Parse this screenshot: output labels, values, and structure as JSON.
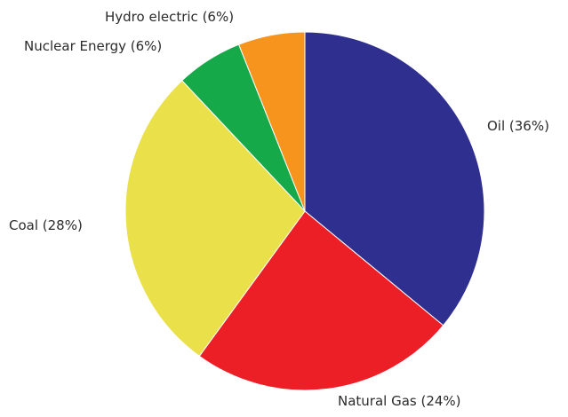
{
  "chart_data": {
    "type": "pie",
    "title": "",
    "start": "top",
    "direction": "clockwise",
    "slices": [
      {
        "label": "Oil (36%)",
        "name": "Oil",
        "value": 36,
        "color": "#2E2F8F"
      },
      {
        "label": "Natural Gas (24%)",
        "name": "Natural Gas",
        "value": 24,
        "color": "#EC1F26"
      },
      {
        "label": "Coal (28%)",
        "name": "Coal",
        "value": 28,
        "color": "#EAE14A"
      },
      {
        "label": "Nuclear Energy (6%)",
        "name": "Nuclear Energy",
        "value": 6,
        "color": "#15A94A"
      },
      {
        "label": "Hydro electric (6%)",
        "name": "Hydro electric",
        "value": 6,
        "color": "#F7941D"
      }
    ]
  }
}
